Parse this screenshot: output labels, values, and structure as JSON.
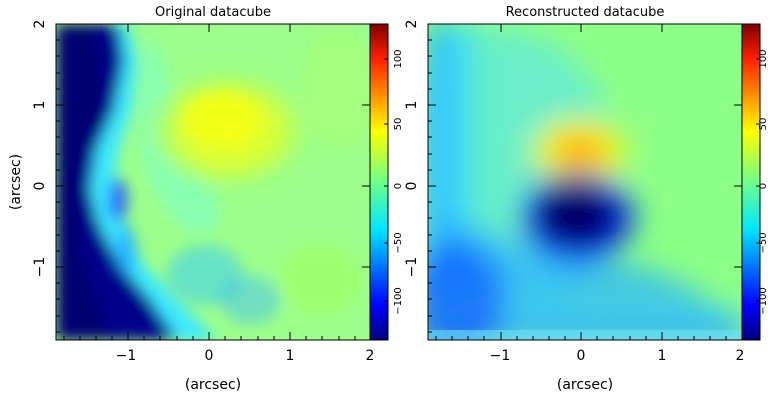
{
  "chart_data": [
    {
      "type": "heatmap",
      "title": "Original datacube",
      "xlabel": "(arcsec)",
      "ylabel": "(arcsec)",
      "xlim": [
        -1.95,
        2.0
      ],
      "ylim": [
        -1.95,
        2.0
      ],
      "x_ticks": [
        "−1",
        "0",
        "1",
        "2"
      ],
      "y_ticks": [
        "−1",
        "0",
        "1",
        "2"
      ],
      "colorbar": {
        "range": [
          -140,
          140
        ],
        "ticks": [
          "−100",
          "−50",
          "0",
          "50",
          "100"
        ]
      },
      "colormap": "jet",
      "grid": false,
      "field": "Velocity map: strong negative values (dark blue, ≈ −140) over the eastern/left region x < −1 arcsec along the full height, a cyan transition band near x ≈ −1 to −0.5 that bulges east at negative y, a broad green plateau (≈ 0 to 20) across the rest, and a yellow maximum (≈ 60–80) near (0.2, 0.8)."
    },
    {
      "type": "heatmap",
      "title": "Reconstructed datacube",
      "xlabel": "(arcsec)",
      "ylabel": "",
      "xlim": [
        -1.95,
        2.0
      ],
      "ylim": [
        -1.95,
        2.0
      ],
      "x_ticks": [
        "−1",
        "0",
        "1",
        "2"
      ],
      "y_ticks": [
        "−1",
        "0",
        "1",
        "2"
      ],
      "colorbar": {
        "range": [
          -140,
          140
        ],
        "ticks": [
          "−100",
          "−50",
          "0",
          "50",
          "100"
        ]
      },
      "colormap": "jet",
      "grid": false,
      "field": "Smooth velocity map: green background (≈ 0–20), a dark blue oval minimum (≈ −140) centred near (0, −0.35), a yellow–orange maximum (≈ 70–90) centred near (0, 0.45), and a light-blue gradient along the left edge and bottom."
    }
  ]
}
